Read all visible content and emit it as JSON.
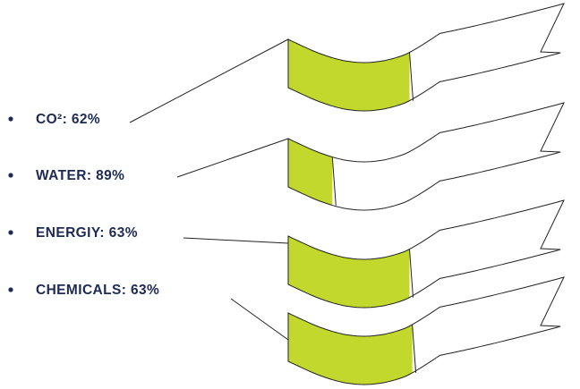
{
  "chart_data": {
    "type": "bar",
    "style": "wave-ribbon infographic with bulleted labels",
    "fill_color": "#c2d82d",
    "label_color": "#1d2a55",
    "items": [
      {
        "label": "CO²: 62%",
        "category": "CO²",
        "value": 62,
        "filled_fraction": 0.44
      },
      {
        "label": "WATER: 89%",
        "category": "WATER",
        "value": 89,
        "filled_fraction": 0.16
      },
      {
        "label": "ENERGIY: 63%",
        "category": "ENERGIY",
        "value": 63,
        "filled_fraction": 0.44
      },
      {
        "label": "CHEMICALS: 63%",
        "category": "CHEMICALS",
        "value": 63,
        "filled_fraction": 0.45
      }
    ]
  }
}
